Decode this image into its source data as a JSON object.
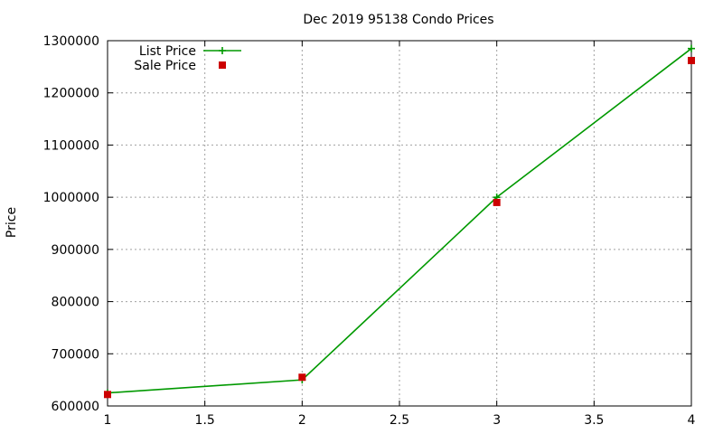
{
  "chart_data": {
    "type": "line",
    "title": "Dec 2019 95138 Condo Prices",
    "xlabel": "",
    "ylabel": "Price",
    "xlim": [
      1,
      4
    ],
    "ylim": [
      600000,
      1300000
    ],
    "xticks": [
      1,
      1.5,
      2,
      2.5,
      3,
      3.5,
      4
    ],
    "xtick_labels": [
      "1",
      "1.5",
      "2",
      "2.5",
      "3",
      "3.5",
      "4"
    ],
    "yticks": [
      600000,
      700000,
      800000,
      900000,
      1000000,
      1100000,
      1200000,
      1300000
    ],
    "ytick_labels": [
      "600000",
      "700000",
      "800000",
      "900000",
      "1000000",
      "1100000",
      "1200000",
      "1300000"
    ],
    "grid": true,
    "legend_position": "top-left",
    "series": [
      {
        "name": "List Price",
        "style": "line-with-plus-markers",
        "color": "#009900",
        "x": [
          1,
          2,
          3,
          4
        ],
        "y": [
          625000,
          650000,
          1000000,
          1285000
        ]
      },
      {
        "name": "Sale Price",
        "style": "square-markers",
        "color": "#cc0000",
        "x": [
          1,
          2,
          3,
          4
        ],
        "y": [
          622000,
          655000,
          990000,
          1262000
        ]
      }
    ]
  }
}
